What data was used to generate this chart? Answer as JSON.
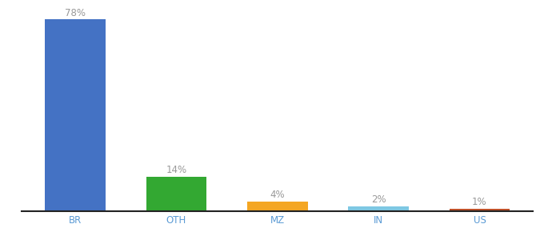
{
  "categories": [
    "BR",
    "OTH",
    "MZ",
    "IN",
    "US"
  ],
  "values": [
    78,
    14,
    4,
    2,
    1
  ],
  "labels": [
    "78%",
    "14%",
    "4%",
    "2%",
    "1%"
  ],
  "bar_colors": [
    "#4472c4",
    "#33a832",
    "#f4a623",
    "#7ec8e3",
    "#c0522a"
  ],
  "ylim": [
    0,
    83
  ],
  "background_color": "#ffffff",
  "label_color": "#999999",
  "label_fontsize": 8.5,
  "tick_fontsize": 8.5,
  "bar_width": 0.6
}
